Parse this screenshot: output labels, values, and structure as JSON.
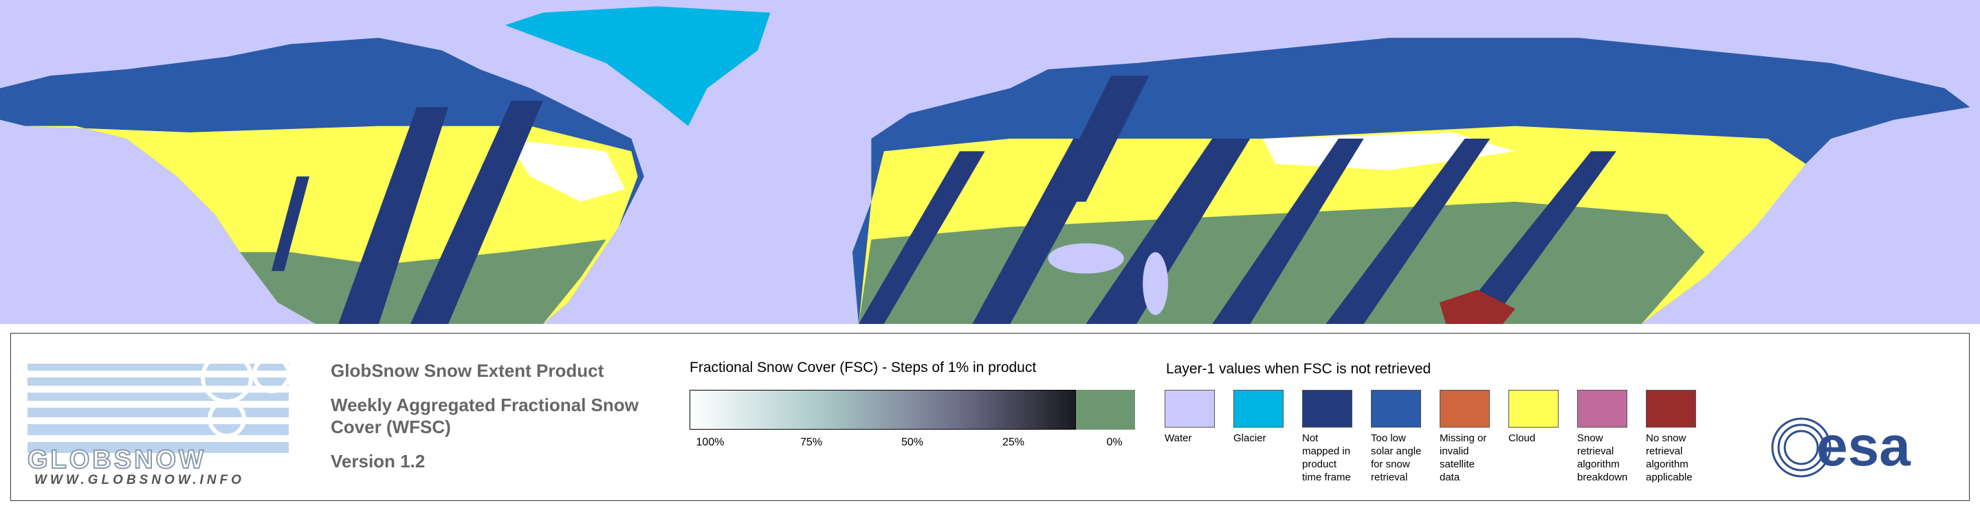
{
  "logo": {
    "name": "GLOBSNOW",
    "url": "WWW.GLOBSNOW.INFO"
  },
  "product": {
    "title": "GlobSnow Snow Extent Product",
    "subtitle": "Weekly Aggregated Fractional Snow Cover (WFSC)",
    "version": "Version 1.2"
  },
  "fsc_scale": {
    "title": "Fractional Snow Cover (FSC) - Steps of 1% in product",
    "ticks": [
      {
        "value": 100,
        "label": "100%"
      },
      {
        "value": 75,
        "label": "75%"
      },
      {
        "value": 50,
        "label": "50%"
      },
      {
        "value": 25,
        "label": "25%"
      },
      {
        "value": 0,
        "label": "0%"
      }
    ]
  },
  "layer1": {
    "title": "Layer-1 values when FSC is not retrieved",
    "items": [
      {
        "label": "Water",
        "color": "#c9c9fd"
      },
      {
        "label": "Glacier",
        "color": "#00b4e6"
      },
      {
        "label": "Not mapped in product time frame",
        "color": "#233a7d"
      },
      {
        "label": "Too low solar angle for snow retrieval",
        "color": "#2b5aa8"
      },
      {
        "label": "Missing or invalid satellite data",
        "color": "#cf6640"
      },
      {
        "label": "Cloud",
        "color": "#ffff55"
      },
      {
        "label": "Snow retrieval algorithm breakdown",
        "color": "#c16a9c"
      },
      {
        "label": "No snow retrieval algorithm applicable",
        "color": "#9b2c2c"
      }
    ]
  },
  "esa": "esa"
}
